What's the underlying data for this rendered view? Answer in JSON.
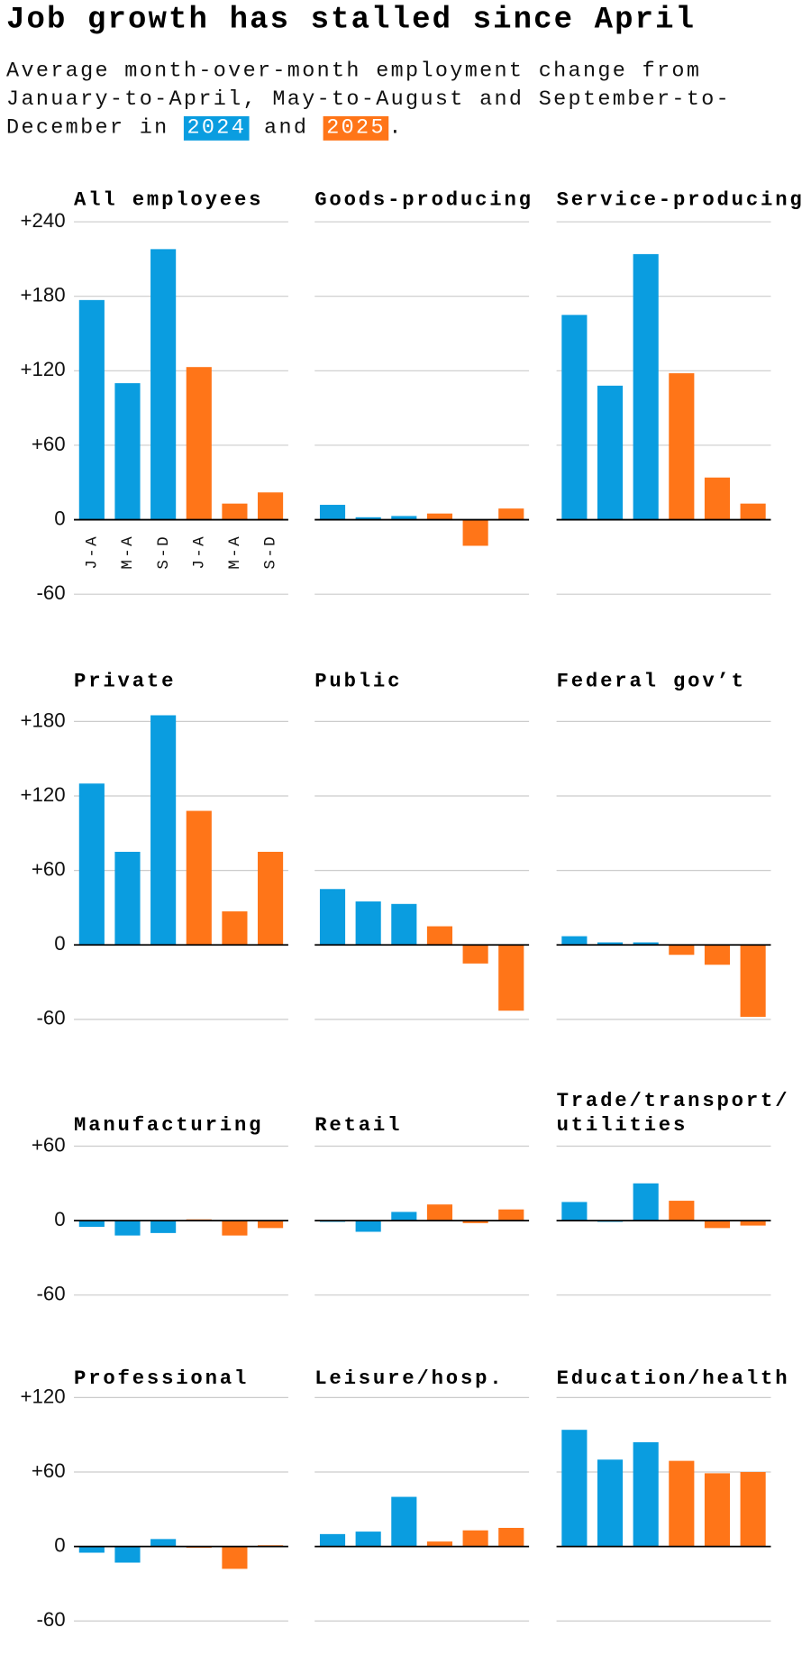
{
  "title": "Job growth has stalled since April",
  "subtitle": {
    "text": "Average month-over-month employment change from January-to-April, May-to-August and September-to-December in",
    "joiner": "and",
    "end": "."
  },
  "legend": [
    {
      "label": "2024",
      "color": "#0a9de0"
    },
    {
      "label": "2025",
      "color": "#ff7518"
    }
  ],
  "chart_data": [
    {
      "type": "bar",
      "title": "All employees",
      "categories": [
        "J-A",
        "M-A",
        "S-D",
        "J-A",
        "M-A",
        "S-D"
      ],
      "values": [
        177,
        110,
        218,
        123,
        13,
        22
      ],
      "colors": [
        "#0a9de0",
        "#0a9de0",
        "#0a9de0",
        "#ff7518",
        "#ff7518",
        "#ff7518"
      ],
      "ylim": [
        -60,
        240
      ],
      "yticks": [
        {
          "value": 240,
          "label": "+240"
        },
        {
          "value": 180,
          "label": "+180"
        },
        {
          "value": 120,
          "label": "+120"
        },
        {
          "value": 60,
          "label": "+60"
        },
        0,
        -60
      ]
    },
    {
      "type": "bar",
      "title": "Goods-producing",
      "values": [
        12,
        2,
        3,
        5,
        -21,
        9
      ],
      "colors": [
        "#0a9de0",
        "#0a9de0",
        "#0a9de0",
        "#ff7518",
        "#ff7518",
        "#ff7518"
      ],
      "ylim": [
        -60,
        240
      ],
      "yticks": [
        240,
        180,
        120,
        60,
        0,
        -60
      ]
    },
    {
      "type": "bar",
      "title": "Service-producing",
      "values": [
        165,
        108,
        214,
        118,
        34,
        13
      ],
      "colors": [
        "#0a9de0",
        "#0a9de0",
        "#0a9de0",
        "#ff7518",
        "#ff7518",
        "#ff7518"
      ],
      "ylim": [
        -60,
        240
      ],
      "yticks": [
        240,
        180,
        120,
        60,
        0,
        -60
      ]
    },
    {
      "type": "bar",
      "title": "Private",
      "values": [
        130,
        75,
        185,
        108,
        27,
        75
      ],
      "colors": [
        "#0a9de0",
        "#0a9de0",
        "#0a9de0",
        "#ff7518",
        "#ff7518",
        "#ff7518"
      ],
      "ylim": [
        -60,
        180
      ],
      "yticks": [
        {
          "value": 180,
          "label": "+180"
        },
        {
          "value": 120,
          "label": "+120"
        },
        {
          "value": 60,
          "label": "+60"
        },
        0,
        -60
      ]
    },
    {
      "type": "bar",
      "title": "Public",
      "values": [
        45,
        35,
        33,
        15,
        -15,
        -53
      ],
      "colors": [
        "#0a9de0",
        "#0a9de0",
        "#0a9de0",
        "#ff7518",
        "#ff7518",
        "#ff7518"
      ],
      "ylim": [
        -60,
        180
      ],
      "yticks": [
        180,
        120,
        60,
        0,
        -60
      ]
    },
    {
      "type": "bar",
      "title": "Federal gov’t",
      "values": [
        7,
        2,
        2,
        -8,
        -16,
        -58
      ],
      "colors": [
        "#0a9de0",
        "#0a9de0",
        "#0a9de0",
        "#ff7518",
        "#ff7518",
        "#ff7518"
      ],
      "ylim": [
        -60,
        180
      ],
      "yticks": [
        180,
        120,
        60,
        0,
        -60
      ]
    },
    {
      "type": "bar",
      "title": "Manufacturing",
      "values": [
        -5,
        -12,
        -10,
        1,
        -12,
        -6
      ],
      "colors": [
        "#0a9de0",
        "#0a9de0",
        "#0a9de0",
        "#ff7518",
        "#ff7518",
        "#ff7518"
      ],
      "ylim": [
        -60,
        60
      ],
      "yticks": [
        {
          "value": 60,
          "label": "+60"
        },
        0,
        -60
      ]
    },
    {
      "type": "bar",
      "title": "Retail",
      "values": [
        -1,
        -9,
        7,
        13,
        -2,
        9
      ],
      "colors": [
        "#0a9de0",
        "#0a9de0",
        "#0a9de0",
        "#ff7518",
        "#ff7518",
        "#ff7518"
      ],
      "ylim": [
        -60,
        60
      ],
      "yticks": [
        60,
        0,
        -60
      ]
    },
    {
      "type": "bar",
      "title": "Trade/transport/ utilities",
      "values": [
        15,
        -1,
        30,
        16,
        -6,
        -4
      ],
      "colors": [
        "#0a9de0",
        "#0a9de0",
        "#0a9de0",
        "#ff7518",
        "#ff7518",
        "#ff7518"
      ],
      "ylim": [
        -60,
        60
      ],
      "yticks": [
        60,
        0,
        -60
      ]
    },
    {
      "type": "bar",
      "title": "Professional",
      "values": [
        -5,
        -13,
        6,
        -1,
        -18,
        1
      ],
      "colors": [
        "#0a9de0",
        "#0a9de0",
        "#0a9de0",
        "#ff7518",
        "#ff7518",
        "#ff7518"
      ],
      "ylim": [
        -60,
        120
      ],
      "yticks": [
        {
          "value": 120,
          "label": "+120"
        },
        {
          "value": 60,
          "label": "+60"
        },
        0,
        -60
      ]
    },
    {
      "type": "bar",
      "title": "Leisure/hosp.",
      "values": [
        10,
        12,
        40,
        4,
        13,
        15
      ],
      "colors": [
        "#0a9de0",
        "#0a9de0",
        "#0a9de0",
        "#ff7518",
        "#ff7518",
        "#ff7518"
      ],
      "ylim": [
        -60,
        120
      ],
      "yticks": [
        120,
        60,
        0,
        -60
      ]
    },
    {
      "type": "bar",
      "title": "Education/health",
      "values": [
        94,
        70,
        84,
        69,
        59,
        60
      ],
      "colors": [
        "#0a9de0",
        "#0a9de0",
        "#0a9de0",
        "#ff7518",
        "#ff7518",
        "#ff7518"
      ],
      "ylim": [
        -60,
        120
      ],
      "yticks": [
        120,
        60,
        0,
        -60
      ]
    }
  ]
}
